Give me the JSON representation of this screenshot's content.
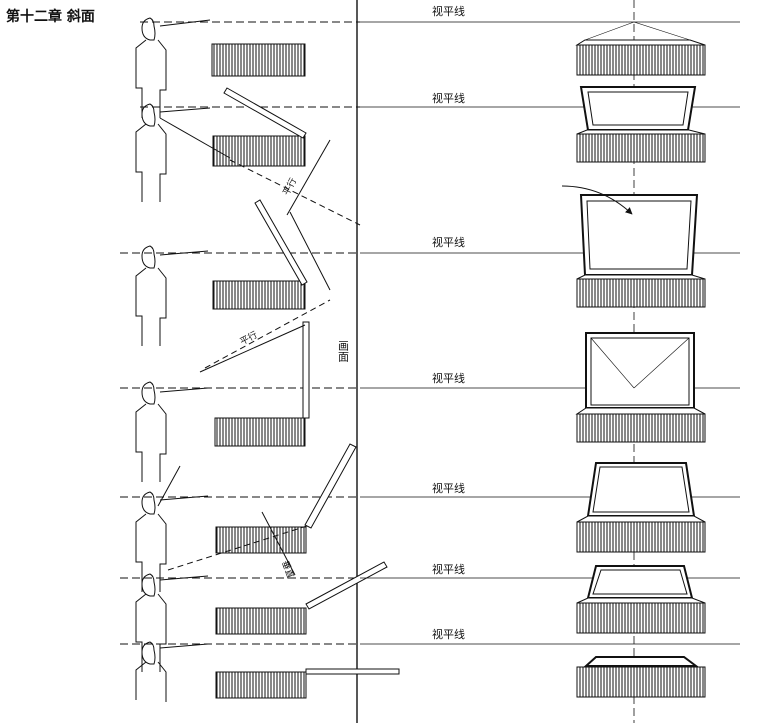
{
  "chapter_title": "第十二章 斜面",
  "horizon_label": "视平线",
  "picture_plane_label": "画面",
  "parallel_label": "平行",
  "vertical_label": "垂直",
  "colors": {
    "ink": "#111111",
    "paper": "#ffffff"
  }
}
